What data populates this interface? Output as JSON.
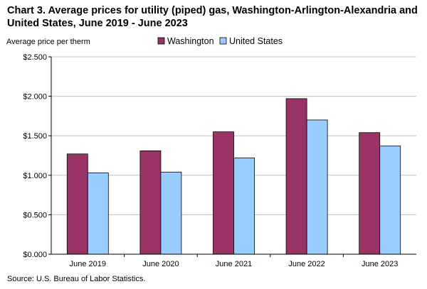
{
  "title": "Chart 3. Average prices for utility (piped) gas, Washington-Arlington-Alexandria and United States, June 2019 - June 2023",
  "source": "Source: U.S. Bureau of Labor Statistics.",
  "colors": {
    "washington": "#993366",
    "united_states": "#99ccff"
  },
  "chart_data": {
    "type": "bar",
    "title": "Chart 3. Average prices for utility (piped) gas, Washington-Arlington-Alexandria and United States, June 2019 - June 2023",
    "xlabel": "",
    "ylabel": "Average price per therm",
    "categories": [
      "June 2019",
      "June 2020",
      "June 2021",
      "June 2022",
      "June 2023"
    ],
    "series": [
      {
        "name": "Washington",
        "values": [
          1.27,
          1.31,
          1.55,
          1.97,
          1.54
        ]
      },
      {
        "name": "United States",
        "values": [
          1.03,
          1.04,
          1.22,
          1.7,
          1.37
        ]
      }
    ],
    "ylim": [
      0,
      2.5
    ],
    "yticks": [
      0,
      0.5,
      1.0,
      1.5,
      2.0,
      2.5
    ],
    "ytick_labels": [
      "$0.000",
      "$0.500",
      "$1.000",
      "$1.500",
      "$2.000",
      "$2.500"
    ],
    "grid": true,
    "legend": "top-center"
  }
}
